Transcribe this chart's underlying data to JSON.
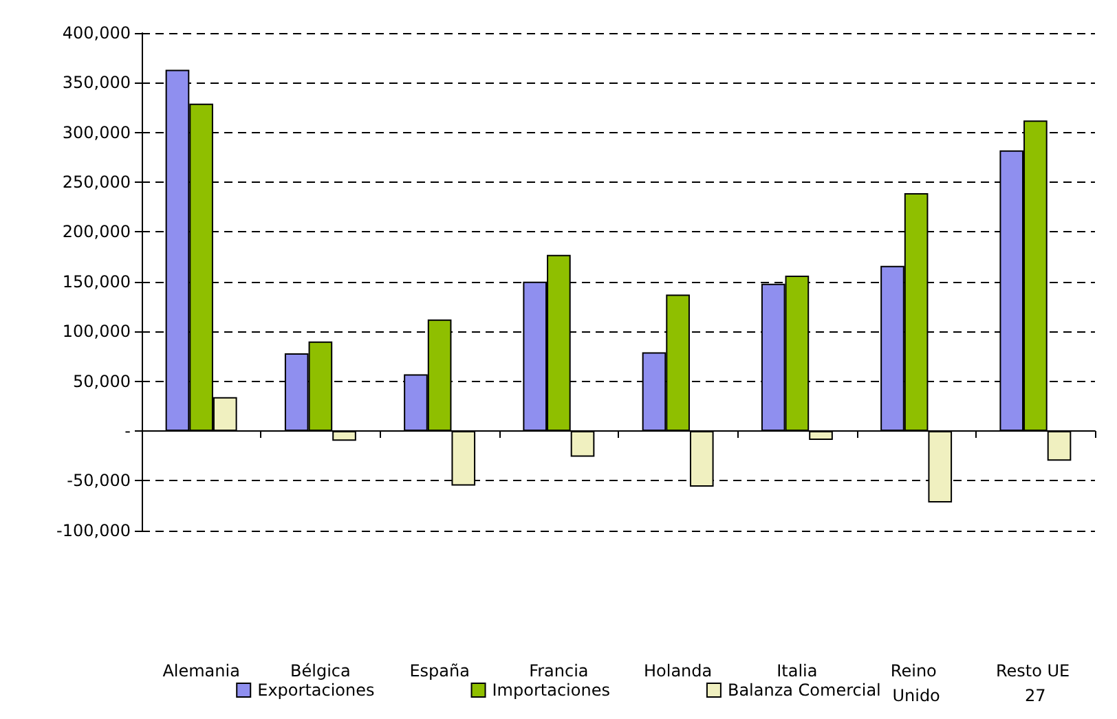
{
  "chart_data": {
    "type": "bar",
    "categories": [
      "Alemania",
      "Bélgica",
      "España",
      "Francia",
      "Holanda",
      "Italia",
      "Reino Unido",
      "Resto UE 27"
    ],
    "series": [
      {
        "name": "Exportaciones",
        "color": "#8f8fef",
        "values": [
          363000,
          78000,
          57000,
          150000,
          79000,
          148000,
          166000,
          282000
        ]
      },
      {
        "name": "Importaciones",
        "color": "#8fbf00",
        "values": [
          329000,
          90000,
          112000,
          177000,
          137000,
          156000,
          239000,
          312000
        ]
      },
      {
        "name": "Balanza Comercial",
        "color": "#f0f0c0",
        "values": [
          34000,
          -10000,
          -55000,
          -26000,
          -56000,
          -9000,
          -72000,
          -30000
        ]
      }
    ],
    "ylim": [
      -100000,
      400000
    ],
    "yticks": [
      {
        "value": -100000,
        "label": "-100,000"
      },
      {
        "value": -50000,
        "label": "-50,000"
      },
      {
        "value": 0,
        "label": "-"
      },
      {
        "value": 50000,
        "label": "50,000"
      },
      {
        "value": 100000,
        "label": "100,000"
      },
      {
        "value": 150000,
        "label": "150,000"
      },
      {
        "value": 200000,
        "label": "200,000"
      },
      {
        "value": 250000,
        "label": "250,000"
      },
      {
        "value": 300000,
        "label": "300,000"
      },
      {
        "value": 350000,
        "label": "350,000"
      },
      {
        "value": 400000,
        "label": "400,000"
      }
    ],
    "grid": "y",
    "legend": "bottom"
  }
}
